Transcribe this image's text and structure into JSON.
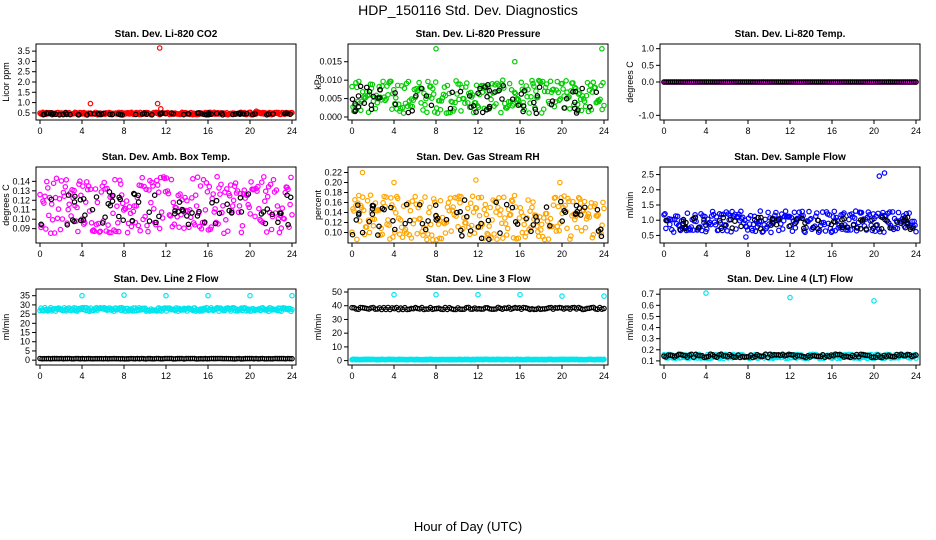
{
  "title": "HDP_150116  Std. Dev. Diagnostics",
  "xlabel": "Hour of Day (UTC)",
  "chart_data": [
    {
      "type": "scatter",
      "title": "Stan. Dev. Li-820 CO2",
      "ylabel": "Licor ppm",
      "xlim": [
        0,
        24
      ],
      "ylim": [
        0.3,
        3.7
      ],
      "xticks": [
        0,
        4,
        8,
        12,
        16,
        20,
        24
      ],
      "yticks": [
        "0.5",
        "1.0",
        "1.5",
        "2.0",
        "2.5",
        "3.0",
        "3.5"
      ],
      "ytick_values": [
        0.5,
        1.0,
        1.5,
        2.0,
        2.5,
        3.0,
        3.5
      ],
      "series": [
        {
          "name": "red",
          "color": "#ff0000",
          "base": 0.47,
          "spread": 0.06,
          "outliers": [
            [
              4.8,
              0.95
            ],
            [
              11.2,
              0.95
            ],
            [
              11.4,
              3.65
            ],
            [
              11.5,
              0.7
            ],
            [
              20.6,
              0.58
            ]
          ]
        },
        {
          "name": "black",
          "color": "#000000",
          "base": 0.45,
          "spread": 0.05,
          "sparse": true
        }
      ]
    },
    {
      "type": "scatter",
      "title": "Stan. Dev. Li-820 Pressure",
      "ylabel": "kPa",
      "xlim": [
        0,
        24
      ],
      "ylim": [
        0,
        0.019
      ],
      "xticks": [
        0,
        4,
        8,
        12,
        16,
        20,
        24
      ],
      "yticks": [
        "0.000",
        "0.005",
        "0.010",
        "0.015"
      ],
      "ytick_values": [
        0.0,
        0.005,
        0.01,
        0.015
      ],
      "series": [
        {
          "name": "green",
          "color": "#00cc00",
          "base": 0.0055,
          "spread": 0.0045,
          "outliers": [
            [
              8.0,
              0.0185
            ],
            [
              15.5,
              0.015
            ],
            [
              23.8,
              0.0185
            ]
          ]
        },
        {
          "name": "black",
          "color": "#000000",
          "base": 0.005,
          "spread": 0.004,
          "sparse": true
        }
      ]
    },
    {
      "type": "scatter",
      "title": "Stan. Dev. Li-820 Temp.",
      "ylabel": "degrees C",
      "xlim": [
        0,
        24
      ],
      "ylim": [
        -1.05,
        1.05
      ],
      "xticks": [
        0,
        4,
        8,
        12,
        16,
        20,
        24
      ],
      "yticks": [
        "-1.0",
        "0.0",
        "0.5",
        "1.0"
      ],
      "ytick_values": [
        -1.0,
        0.0,
        0.5,
        1.0
      ],
      "series": [
        {
          "name": "magenta",
          "color": "#ff00ff",
          "base": 0.0,
          "spread": 0.0,
          "outliers": []
        },
        {
          "name": "black",
          "color": "#000000",
          "base": 0.0,
          "spread": 0.0,
          "sparse": false
        }
      ]
    },
    {
      "type": "scatter",
      "title": "Stan. Dev. Amb. Box Temp.",
      "ylabel": "degrees C",
      "xlim": [
        0,
        24
      ],
      "ylim": [
        0.078,
        0.152
      ],
      "xticks": [
        0,
        4,
        8,
        12,
        16,
        20,
        24
      ],
      "yticks": [
        "0.09",
        "0.10",
        "0.11",
        "0.12",
        "0.13",
        "0.14"
      ],
      "ytick_values": [
        0.09,
        0.1,
        0.11,
        0.12,
        0.13,
        0.14
      ],
      "series": [
        {
          "name": "magenta",
          "color": "#ff00ff",
          "base": 0.115,
          "spread": 0.03,
          "outliers": []
        },
        {
          "name": "black",
          "color": "#000000",
          "base": 0.112,
          "spread": 0.018,
          "sparse": true
        }
      ]
    },
    {
      "type": "scatter",
      "title": "Stan. Dev. Gas Stream RH",
      "ylabel": "percent",
      "xlim": [
        0,
        24
      ],
      "ylim": [
        0.085,
        0.225
      ],
      "xticks": [
        0,
        4,
        8,
        12,
        16,
        20,
        24
      ],
      "yticks": [
        "0.10",
        "0.12",
        "0.14",
        "0.16",
        "0.18",
        "0.20",
        "0.22"
      ],
      "ytick_values": [
        0.1,
        0.12,
        0.14,
        0.16,
        0.18,
        0.2,
        0.22
      ],
      "series": [
        {
          "name": "orange",
          "color": "#ffa500",
          "base": 0.13,
          "spread": 0.045,
          "outliers": [
            [
              1.0,
              0.22
            ],
            [
              4.0,
              0.2
            ],
            [
              11.8,
              0.205
            ],
            [
              19.8,
              0.2
            ]
          ]
        },
        {
          "name": "black",
          "color": "#000000",
          "base": 0.125,
          "spread": 0.04,
          "sparse": true
        }
      ]
    },
    {
      "type": "scatter",
      "title": "Stan. Dev. Sample Flow",
      "ylabel": "ml/min",
      "xlim": [
        0,
        24
      ],
      "ylim": [
        0.35,
        2.65
      ],
      "xticks": [
        0,
        4,
        8,
        12,
        16,
        20,
        24
      ],
      "yticks": [
        "0.5",
        "1.0",
        "1.5",
        "2.0",
        "2.5"
      ],
      "ytick_values": [
        0.5,
        1.0,
        1.5,
        2.0,
        2.5
      ],
      "series": [
        {
          "name": "blue",
          "color": "#0000ff",
          "base": 0.95,
          "spread": 0.35,
          "outliers": [
            [
              7.8,
              0.45
            ],
            [
              20.5,
              2.45
            ],
            [
              21.0,
              2.55
            ]
          ]
        },
        {
          "name": "black",
          "color": "#000000",
          "base": 0.9,
          "spread": 0.2,
          "sparse": true
        }
      ]
    },
    {
      "type": "scatter",
      "title": "Stan. Dev. Line 2 Flow",
      "ylabel": "ml/min",
      "xlim": [
        0,
        24
      ],
      "ylim": [
        -1,
        37
      ],
      "xticks": [
        0,
        4,
        8,
        12,
        16,
        20,
        24
      ],
      "yticks": [
        "0",
        "5",
        "10",
        "15",
        "20",
        "25",
        "30",
        "35"
      ],
      "ytick_values": [
        0,
        5,
        10,
        15,
        20,
        25,
        30,
        35
      ],
      "series": [
        {
          "name": "cyan",
          "color": "#00e5ee",
          "base": 27.5,
          "spread": 1.0,
          "outliers": [
            [
              4.0,
              35
            ],
            [
              8.0,
              35.3
            ],
            [
              12.0,
              35
            ],
            [
              16.0,
              35
            ],
            [
              20.0,
              35
            ],
            [
              24.0,
              35
            ]
          ]
        },
        {
          "name": "black",
          "color": "#000000",
          "base": 0.8,
          "spread": 0.1,
          "sparse": false
        }
      ]
    },
    {
      "type": "scatter",
      "title": "Stan. Dev. Line 3 Flow",
      "ylabel": "ml/min",
      "xlim": [
        0,
        24
      ],
      "ylim": [
        -1,
        50
      ],
      "xticks": [
        0,
        4,
        8,
        12,
        16,
        20,
        24
      ],
      "yticks": [
        "0",
        "10",
        "20",
        "30",
        "40",
        "50"
      ],
      "ytick_values": [
        0,
        10,
        20,
        30,
        40,
        50
      ],
      "series": [
        {
          "name": "cyan",
          "color": "#00e5ee",
          "base": 0.8,
          "spread": 0.2,
          "outliers": [
            [
              4.0,
              48
            ],
            [
              8.0,
              48
            ],
            [
              12.0,
              48
            ],
            [
              16.0,
              48
            ],
            [
              20.0,
              47
            ],
            [
              24.0,
              47
            ]
          ]
        },
        {
          "name": "black",
          "color": "#000000",
          "base": 38,
          "spread": 0.8,
          "sparse": false
        }
      ]
    },
    {
      "type": "scatter",
      "title": "Stan. Dev. Line 4 (LT) Flow",
      "ylabel": "ml/min",
      "xlim": [
        0,
        24
      ],
      "ylim": [
        0.09,
        0.72
      ],
      "xticks": [
        0,
        4,
        8,
        12,
        16,
        20,
        24
      ],
      "yticks": [
        "0.1",
        "0.2",
        "0.3",
        "0.4",
        "0.5",
        "0.6",
        "0.7"
      ],
      "ytick_values": [
        0.1,
        0.2,
        0.3,
        0.4,
        0.5,
        0.6,
        0.7
      ],
      "series": [
        {
          "name": "cyan",
          "color": "#00e5ee",
          "base": 0.14,
          "spread": 0.02,
          "outliers": [
            [
              4.0,
              0.71
            ],
            [
              12.0,
              0.67
            ],
            [
              20.0,
              0.64
            ]
          ]
        },
        {
          "name": "black",
          "color": "#000000",
          "base": 0.145,
          "spread": 0.015,
          "sparse": false
        }
      ]
    }
  ]
}
